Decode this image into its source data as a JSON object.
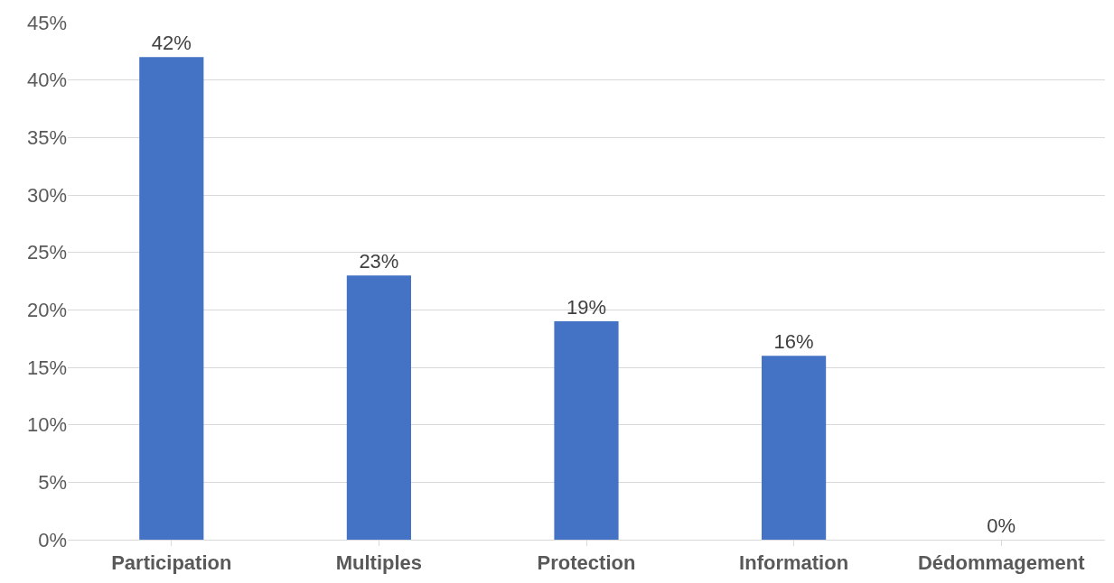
{
  "chart_data": {
    "type": "bar",
    "categories": [
      "Participation",
      "Multiples",
      "Protection",
      "Information",
      "Dédommagement"
    ],
    "values": [
      42,
      23,
      19,
      16,
      0
    ],
    "value_labels": [
      "42%",
      "23%",
      "19%",
      "16%",
      "0%"
    ],
    "color": "#4472c4",
    "ylim": [
      0,
      45
    ],
    "yticks": [
      {
        "value": 0,
        "label": "0%"
      },
      {
        "value": 5,
        "label": "5%"
      },
      {
        "value": 10,
        "label": "10%"
      },
      {
        "value": 15,
        "label": "15%"
      },
      {
        "value": 20,
        "label": "20%"
      },
      {
        "value": 25,
        "label": "25%"
      },
      {
        "value": 30,
        "label": "30%"
      },
      {
        "value": 35,
        "label": "35%"
      },
      {
        "value": 40,
        "label": "40%"
      },
      {
        "value": 45,
        "label": "45%"
      }
    ],
    "grid": "y",
    "legend": false
  }
}
